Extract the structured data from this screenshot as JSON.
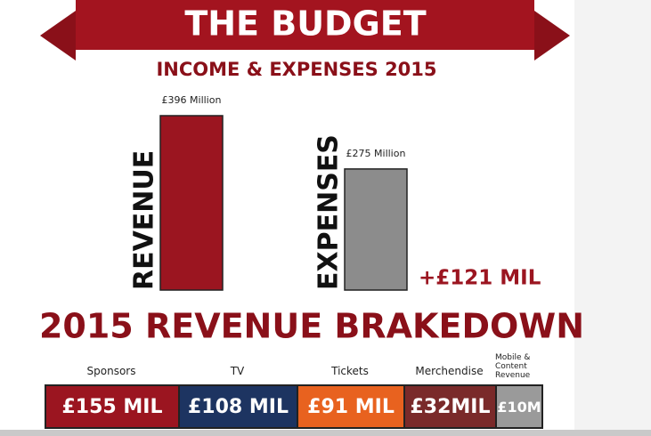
{
  "banner": "THE BUDGET",
  "chart_data": {
    "type": "bar",
    "title": "INCOME & EXPENSES 2015",
    "categories": [
      "REVENUE",
      "EXPENSES"
    ],
    "values": [
      396,
      275
    ],
    "value_labels": [
      "£396 Million",
      "£275 Million"
    ],
    "colors": [
      "#9b1520",
      "#8c8c8c"
    ],
    "annotation": "+£121 MIL"
  },
  "breakdown": {
    "title": "2015 REVENUE BRAKEDOWN",
    "items": [
      {
        "name": "Sponsors",
        "amount": "£155 MIL",
        "color": "#9b1520"
      },
      {
        "name": "TV",
        "amount": "£108 MIL",
        "color": "#1d3461"
      },
      {
        "name": "Tickets",
        "amount": "£91 MIL",
        "color": "#e8621f"
      },
      {
        "name": "Merchendise",
        "amount": "£32MIL",
        "color": "#7a2a2a"
      },
      {
        "name": "Mobile & Content Revenue",
        "amount": "£10M",
        "color": "#9a9a9a"
      }
    ]
  }
}
